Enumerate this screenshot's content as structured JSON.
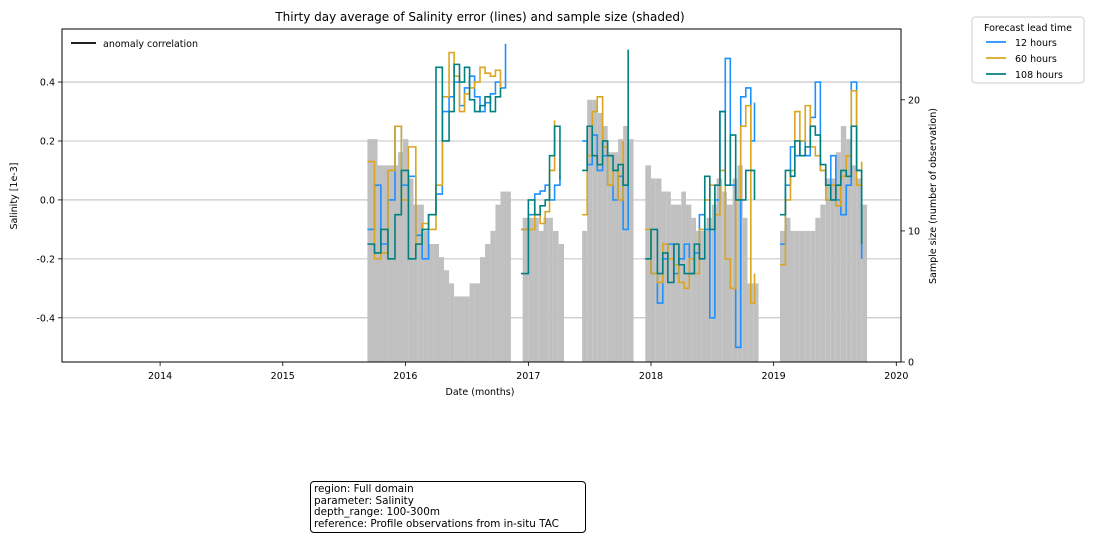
{
  "chart_data": {
    "type": "line",
    "title": "Thirty day average of Salinity error (lines) and sample size (shaded)",
    "xlabel": "Date (months)",
    "ylabel": "Salinity [1e-3]",
    "y2label": "Sample size (number of observation)",
    "xlim": [
      "2013-03-15",
      "2020-01-15"
    ],
    "ylim": [
      -0.55,
      0.58
    ],
    "y2lim": [
      0,
      25.4
    ],
    "xticks": [
      "2014-01-01",
      "2015-01-01",
      "2016-01-01",
      "2017-01-01",
      "2018-01-01",
      "2019-01-01",
      "2020-01-01"
    ],
    "xtick_labels": [
      "2014",
      "2015",
      "2016",
      "2017",
      "2018",
      "2019",
      "2020"
    ],
    "yticks": [
      -0.4,
      -0.2,
      0.0,
      0.2,
      0.4
    ],
    "ytick_labels": [
      "-0.4",
      "-0.2",
      "0.0",
      "0.2",
      "0.4"
    ],
    "y2ticks": [
      0,
      10,
      20
    ],
    "y2tick_labels": [
      "0",
      "10",
      "20"
    ],
    "grid": "horizontal",
    "legend_inner": {
      "label": "anomaly correlation",
      "color": "#000000",
      "placement": "upper-left"
    },
    "legend": {
      "title": "Forecast lead time",
      "placement": "outside-top-right"
    },
    "sample_size": {
      "color": "#c0c0c0",
      "x": [
        "2015-09-10",
        "2015-09-25",
        "2015-10-10",
        "2015-10-25",
        "2015-11-10",
        "2015-11-25",
        "2015-12-10",
        "2015-12-25",
        "2016-01-10",
        "2016-01-25",
        "2016-02-10",
        "2016-02-25",
        "2016-03-10",
        "2016-03-25",
        "2016-04-10",
        "2016-04-25",
        "2016-05-10",
        "2016-05-25",
        "2016-06-10",
        "2016-06-25",
        "2016-07-10",
        "2016-07-25",
        "2016-08-10",
        "2016-08-25",
        "2016-09-10",
        "2016-09-25",
        "2016-10-10",
        "2016-10-25",
        "2016-12-15",
        "2017-01-01",
        "2017-01-15",
        "2017-02-01",
        "2017-02-15",
        "2017-03-01",
        "2017-03-15",
        "2017-04-01",
        "2017-06-10",
        "2017-06-25",
        "2017-07-10",
        "2017-07-25",
        "2017-08-10",
        "2017-08-25",
        "2017-09-10",
        "2017-09-25",
        "2017-10-10",
        "2017-10-25",
        "2017-12-15",
        "2018-01-01",
        "2018-01-15",
        "2018-02-01",
        "2018-02-15",
        "2018-03-01",
        "2018-03-15",
        "2018-04-01",
        "2018-04-15",
        "2018-05-01",
        "2018-05-15",
        "2018-06-01",
        "2018-06-15",
        "2018-07-01",
        "2018-07-15",
        "2018-08-01",
        "2018-08-15",
        "2018-09-01",
        "2018-09-15",
        "2018-10-01",
        "2018-10-15",
        "2018-11-01",
        "2019-01-20",
        "2019-02-05",
        "2019-02-20",
        "2019-03-05",
        "2019-03-20",
        "2019-04-05",
        "2019-04-20",
        "2019-05-05",
        "2019-05-20",
        "2019-06-05",
        "2019-06-20",
        "2019-07-05",
        "2019-07-20",
        "2019-08-05",
        "2019-08-20",
        "2019-09-05",
        "2019-09-20"
      ],
      "values": [
        17,
        17,
        15,
        15,
        15,
        15,
        16,
        17,
        14,
        12,
        12,
        10,
        9,
        9,
        8,
        7,
        6,
        5,
        5,
        5,
        6,
        6,
        8,
        9,
        10,
        12,
        13,
        13,
        11,
        11,
        11,
        10,
        11,
        11,
        10,
        9,
        10,
        20,
        20,
        19,
        18,
        16,
        16,
        17,
        18,
        17,
        15,
        14,
        14,
        13,
        13,
        12,
        12,
        13,
        12,
        11,
        10,
        10,
        11,
        12,
        14,
        13,
        12,
        14,
        15,
        11,
        6,
        6,
        10,
        11,
        10,
        10,
        10,
        10,
        10,
        11,
        12,
        14,
        14,
        16,
        18,
        17,
        15,
        14,
        12
      ]
    },
    "series": [
      {
        "name": "12 hours",
        "color": "#1e90ff",
        "segments": [
          {
            "x": [
              "2015-09-10",
              "2015-10-01",
              "2015-10-20",
              "2015-11-10",
              "2015-12-01",
              "2015-12-20",
              "2016-01-10",
              "2016-02-01",
              "2016-02-20",
              "2016-03-10",
              "2016-04-01",
              "2016-04-20",
              "2016-05-10",
              "2016-05-25",
              "2016-06-10",
              "2016-06-25",
              "2016-07-10",
              "2016-07-25",
              "2016-08-10",
              "2016-08-25",
              "2016-09-10",
              "2016-09-25",
              "2016-10-10",
              "2016-10-25"
            ],
            "y": [
              -0.1,
              0.05,
              -0.15,
              0.0,
              0.25,
              0.05,
              0.08,
              -0.12,
              -0.2,
              -0.05,
              0.02,
              0.3,
              0.35,
              0.4,
              0.32,
              0.38,
              0.42,
              0.35,
              0.3,
              0.33,
              0.36,
              0.4,
              0.38,
              0.53
            ]
          },
          {
            "x": [
              "2016-12-10",
              "2017-01-01",
              "2017-01-20",
              "2017-02-05",
              "2017-02-20",
              "2017-03-05",
              "2017-03-20",
              "2017-04-05"
            ],
            "y": [
              -0.1,
              -0.05,
              0.02,
              0.03,
              0.05,
              0.0,
              0.05,
              0.08
            ]
          },
          {
            "x": [
              "2017-06-10",
              "2017-06-25",
              "2017-07-10",
              "2017-07-25",
              "2017-08-10",
              "2017-08-25",
              "2017-09-10",
              "2017-09-25",
              "2017-10-10",
              "2017-10-25"
            ],
            "y": [
              0.2,
              0.12,
              0.22,
              0.1,
              0.15,
              0.05,
              0.0,
              0.08,
              -0.1,
              0.2
            ]
          },
          {
            "x": [
              "2017-12-15",
              "2018-01-01",
              "2018-01-20",
              "2018-02-05",
              "2018-02-20",
              "2018-03-10",
              "2018-03-25",
              "2018-04-10",
              "2018-04-25",
              "2018-05-10",
              "2018-05-25",
              "2018-06-10",
              "2018-06-25",
              "2018-07-10",
              "2018-07-25",
              "2018-08-10",
              "2018-08-25",
              "2018-09-10",
              "2018-09-25",
              "2018-10-10",
              "2018-10-25",
              "2018-11-05"
            ],
            "y": [
              -0.2,
              -0.25,
              -0.35,
              -0.2,
              -0.15,
              -0.25,
              -0.2,
              -0.15,
              -0.25,
              -0.18,
              -0.05,
              -0.1,
              -0.4,
              0.0,
              0.3,
              0.48,
              0.05,
              -0.5,
              0.35,
              0.38,
              0.2,
              0.33
            ]
          },
          {
            "x": [
              "2019-01-20",
              "2019-02-05",
              "2019-02-20",
              "2019-03-05",
              "2019-03-20",
              "2019-04-05",
              "2019-04-20",
              "2019-05-05",
              "2019-05-20",
              "2019-06-05",
              "2019-06-20",
              "2019-07-05",
              "2019-07-20",
              "2019-08-05",
              "2019-08-20",
              "2019-09-05",
              "2019-09-20"
            ],
            "y": [
              -0.15,
              0.05,
              0.18,
              0.15,
              0.2,
              0.15,
              0.28,
              0.4,
              0.1,
              0.05,
              0.15,
              0.0,
              -0.05,
              0.05,
              0.4,
              0.1,
              -0.2
            ]
          }
        ]
      },
      {
        "name": "60 hours",
        "color": "#daa520",
        "segments": [
          {
            "x": [
              "2015-09-10",
              "2015-10-01",
              "2015-10-20",
              "2015-11-10",
              "2015-12-01",
              "2015-12-20",
              "2016-01-10",
              "2016-02-01",
              "2016-02-20",
              "2016-03-10",
              "2016-04-01",
              "2016-04-20",
              "2016-05-10",
              "2016-05-25",
              "2016-06-10",
              "2016-06-25",
              "2016-07-10",
              "2016-07-25",
              "2016-08-10",
              "2016-08-25",
              "2016-09-10",
              "2016-09-25",
              "2016-10-10"
            ],
            "y": [
              0.13,
              -0.2,
              -0.18,
              0.1,
              0.25,
              0.0,
              0.18,
              -0.15,
              -0.08,
              -0.1,
              0.05,
              0.35,
              0.5,
              0.42,
              0.3,
              0.36,
              0.38,
              0.4,
              0.45,
              0.43,
              0.42,
              0.44,
              0.38
            ]
          },
          {
            "x": [
              "2016-12-10",
              "2017-01-01",
              "2017-01-20",
              "2017-02-05",
              "2017-02-20",
              "2017-03-05",
              "2017-03-20"
            ],
            "y": [
              -0.1,
              -0.1,
              -0.05,
              -0.08,
              -0.04,
              0.1,
              0.27
            ]
          },
          {
            "x": [
              "2017-06-10",
              "2017-06-25",
              "2017-07-10",
              "2017-07-25",
              "2017-08-10",
              "2017-08-25",
              "2017-09-10",
              "2017-09-25",
              "2017-10-10"
            ],
            "y": [
              -0.05,
              0.15,
              0.3,
              0.35,
              0.18,
              0.05,
              0.1,
              0.0,
              0.2
            ]
          },
          {
            "x": [
              "2017-12-15",
              "2018-01-01",
              "2018-01-20",
              "2018-02-05",
              "2018-02-20",
              "2018-03-10",
              "2018-03-25",
              "2018-04-10",
              "2018-04-25",
              "2018-05-10",
              "2018-05-25",
              "2018-06-10",
              "2018-06-25",
              "2018-07-10",
              "2018-07-25",
              "2018-08-10",
              "2018-08-25",
              "2018-09-10",
              "2018-09-25",
              "2018-10-10",
              "2018-10-25",
              "2018-11-05"
            ],
            "y": [
              -0.1,
              -0.25,
              -0.28,
              -0.15,
              -0.2,
              -0.22,
              -0.28,
              -0.3,
              -0.2,
              -0.25,
              -0.1,
              0.0,
              0.05,
              -0.05,
              0.1,
              -0.2,
              -0.3,
              0.0,
              0.25,
              0.32,
              -0.35,
              -0.25
            ]
          },
          {
            "x": [
              "2019-01-20",
              "2019-02-05",
              "2019-02-20",
              "2019-03-05",
              "2019-03-20",
              "2019-04-05",
              "2019-04-20",
              "2019-05-05",
              "2019-05-20",
              "2019-06-05",
              "2019-06-20",
              "2019-07-05",
              "2019-07-20",
              "2019-08-05",
              "2019-08-20",
              "2019-09-05",
              "2019-09-20"
            ],
            "y": [
              -0.22,
              0.0,
              0.1,
              0.3,
              0.2,
              0.32,
              0.18,
              0.15,
              0.1,
              0.0,
              0.05,
              -0.02,
              0.08,
              0.15,
              0.37,
              0.05,
              0.13
            ]
          }
        ]
      },
      {
        "name": "108 hours",
        "color": "#008080",
        "segments": [
          {
            "x": [
              "2015-09-10",
              "2015-10-01",
              "2015-10-20",
              "2015-11-10",
              "2015-12-01",
              "2015-12-20",
              "2016-01-10",
              "2016-02-01",
              "2016-02-20",
              "2016-03-10",
              "2016-04-01",
              "2016-04-20",
              "2016-05-10",
              "2016-05-25",
              "2016-06-10",
              "2016-06-25",
              "2016-07-10",
              "2016-07-25",
              "2016-08-10",
              "2016-08-25",
              "2016-09-10",
              "2016-09-25",
              "2016-10-10"
            ],
            "y": [
              -0.15,
              -0.18,
              -0.1,
              -0.2,
              -0.05,
              0.1,
              -0.2,
              -0.15,
              -0.1,
              -0.05,
              0.45,
              0.2,
              0.3,
              0.46,
              0.4,
              0.45,
              0.34,
              0.3,
              0.32,
              0.35,
              0.3,
              0.35,
              0.38
            ]
          },
          {
            "x": [
              "2016-12-10",
              "2017-01-01",
              "2017-01-20",
              "2017-02-05",
              "2017-02-20",
              "2017-03-05",
              "2017-03-20",
              "2017-04-05"
            ],
            "y": [
              -0.25,
              0.0,
              -0.05,
              -0.02,
              0.0,
              0.15,
              0.25,
              0.07
            ]
          },
          {
            "x": [
              "2017-06-10",
              "2017-06-25",
              "2017-07-10",
              "2017-07-25",
              "2017-08-10",
              "2017-08-25",
              "2017-09-10",
              "2017-09-25",
              "2017-10-10",
              "2017-10-25"
            ],
            "y": [
              0.1,
              0.25,
              0.15,
              0.12,
              0.2,
              0.15,
              0.1,
              0.12,
              0.05,
              0.51
            ]
          },
          {
            "x": [
              "2017-12-15",
              "2018-01-01",
              "2018-01-20",
              "2018-02-05",
              "2018-02-20",
              "2018-03-10",
              "2018-03-25",
              "2018-04-10",
              "2018-04-25",
              "2018-05-10",
              "2018-05-25",
              "2018-06-10",
              "2018-06-25",
              "2018-07-10",
              "2018-07-25",
              "2018-08-10",
              "2018-08-25",
              "2018-09-10",
              "2018-09-25",
              "2018-10-10",
              "2018-10-25",
              "2018-11-05"
            ],
            "y": [
              -0.2,
              -0.1,
              -0.25,
              -0.18,
              -0.28,
              -0.15,
              -0.22,
              -0.25,
              -0.25,
              -0.15,
              -0.2,
              0.08,
              -0.1,
              0.05,
              0.3,
              0.05,
              0.22,
              0.0,
              0.0,
              0.1,
              0.1,
              0.0
            ]
          },
          {
            "x": [
              "2019-01-20",
              "2019-02-05",
              "2019-02-20",
              "2019-03-05",
              "2019-03-20",
              "2019-04-05",
              "2019-04-20",
              "2019-05-05",
              "2019-05-20",
              "2019-06-05",
              "2019-06-20",
              "2019-07-05",
              "2019-07-20",
              "2019-08-05",
              "2019-08-20",
              "2019-09-05",
              "2019-09-20"
            ],
            "y": [
              -0.05,
              0.1,
              0.08,
              0.2,
              0.15,
              0.18,
              0.25,
              0.22,
              0.12,
              0.05,
              0.0,
              0.05,
              0.1,
              0.08,
              0.25,
              0.1,
              -0.15
            ]
          }
        ]
      }
    ]
  },
  "info_box": {
    "lines": [
      "region: Full domain",
      "parameter: Salinity",
      "depth_range: 100-300m",
      "reference: Profile observations from in-situ TAC"
    ]
  }
}
